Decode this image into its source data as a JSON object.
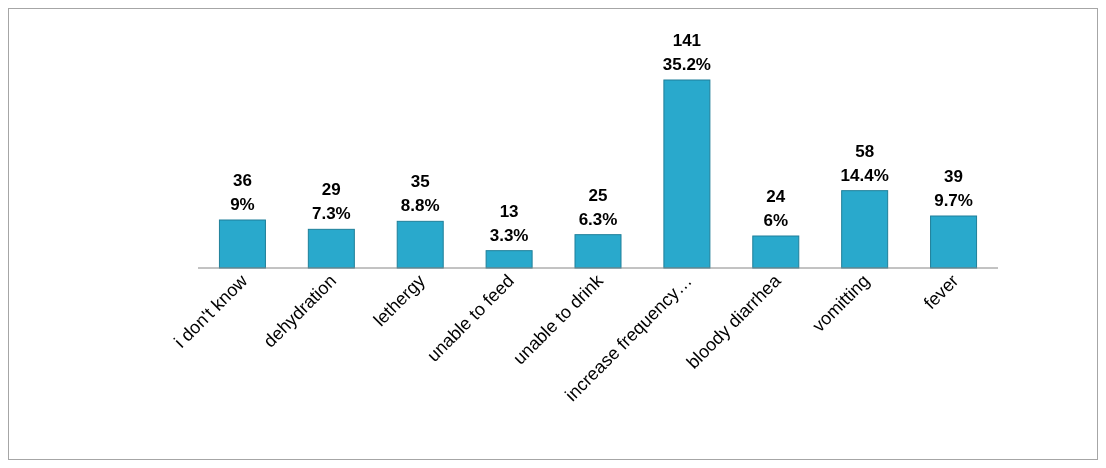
{
  "chart_data": {
    "type": "bar",
    "categories": [
      "i don't know",
      "dehydration",
      "lethergy",
      "unable to feed",
      "unable to drink",
      "increase frequency…",
      "bloody diarrhea",
      "vomitting",
      "fever"
    ],
    "values": [
      36,
      29,
      35,
      13,
      25,
      141,
      24,
      58,
      39
    ],
    "value_labels": [
      "36\n9%",
      "29\n7.3%",
      "35\n8.8%",
      "13\n3.3%",
      "25\n6.3%",
      "141\n35.2%",
      "24\n6%",
      "58\n14.4%",
      "39\n9.7%"
    ],
    "color": "#29a9cc"
  }
}
